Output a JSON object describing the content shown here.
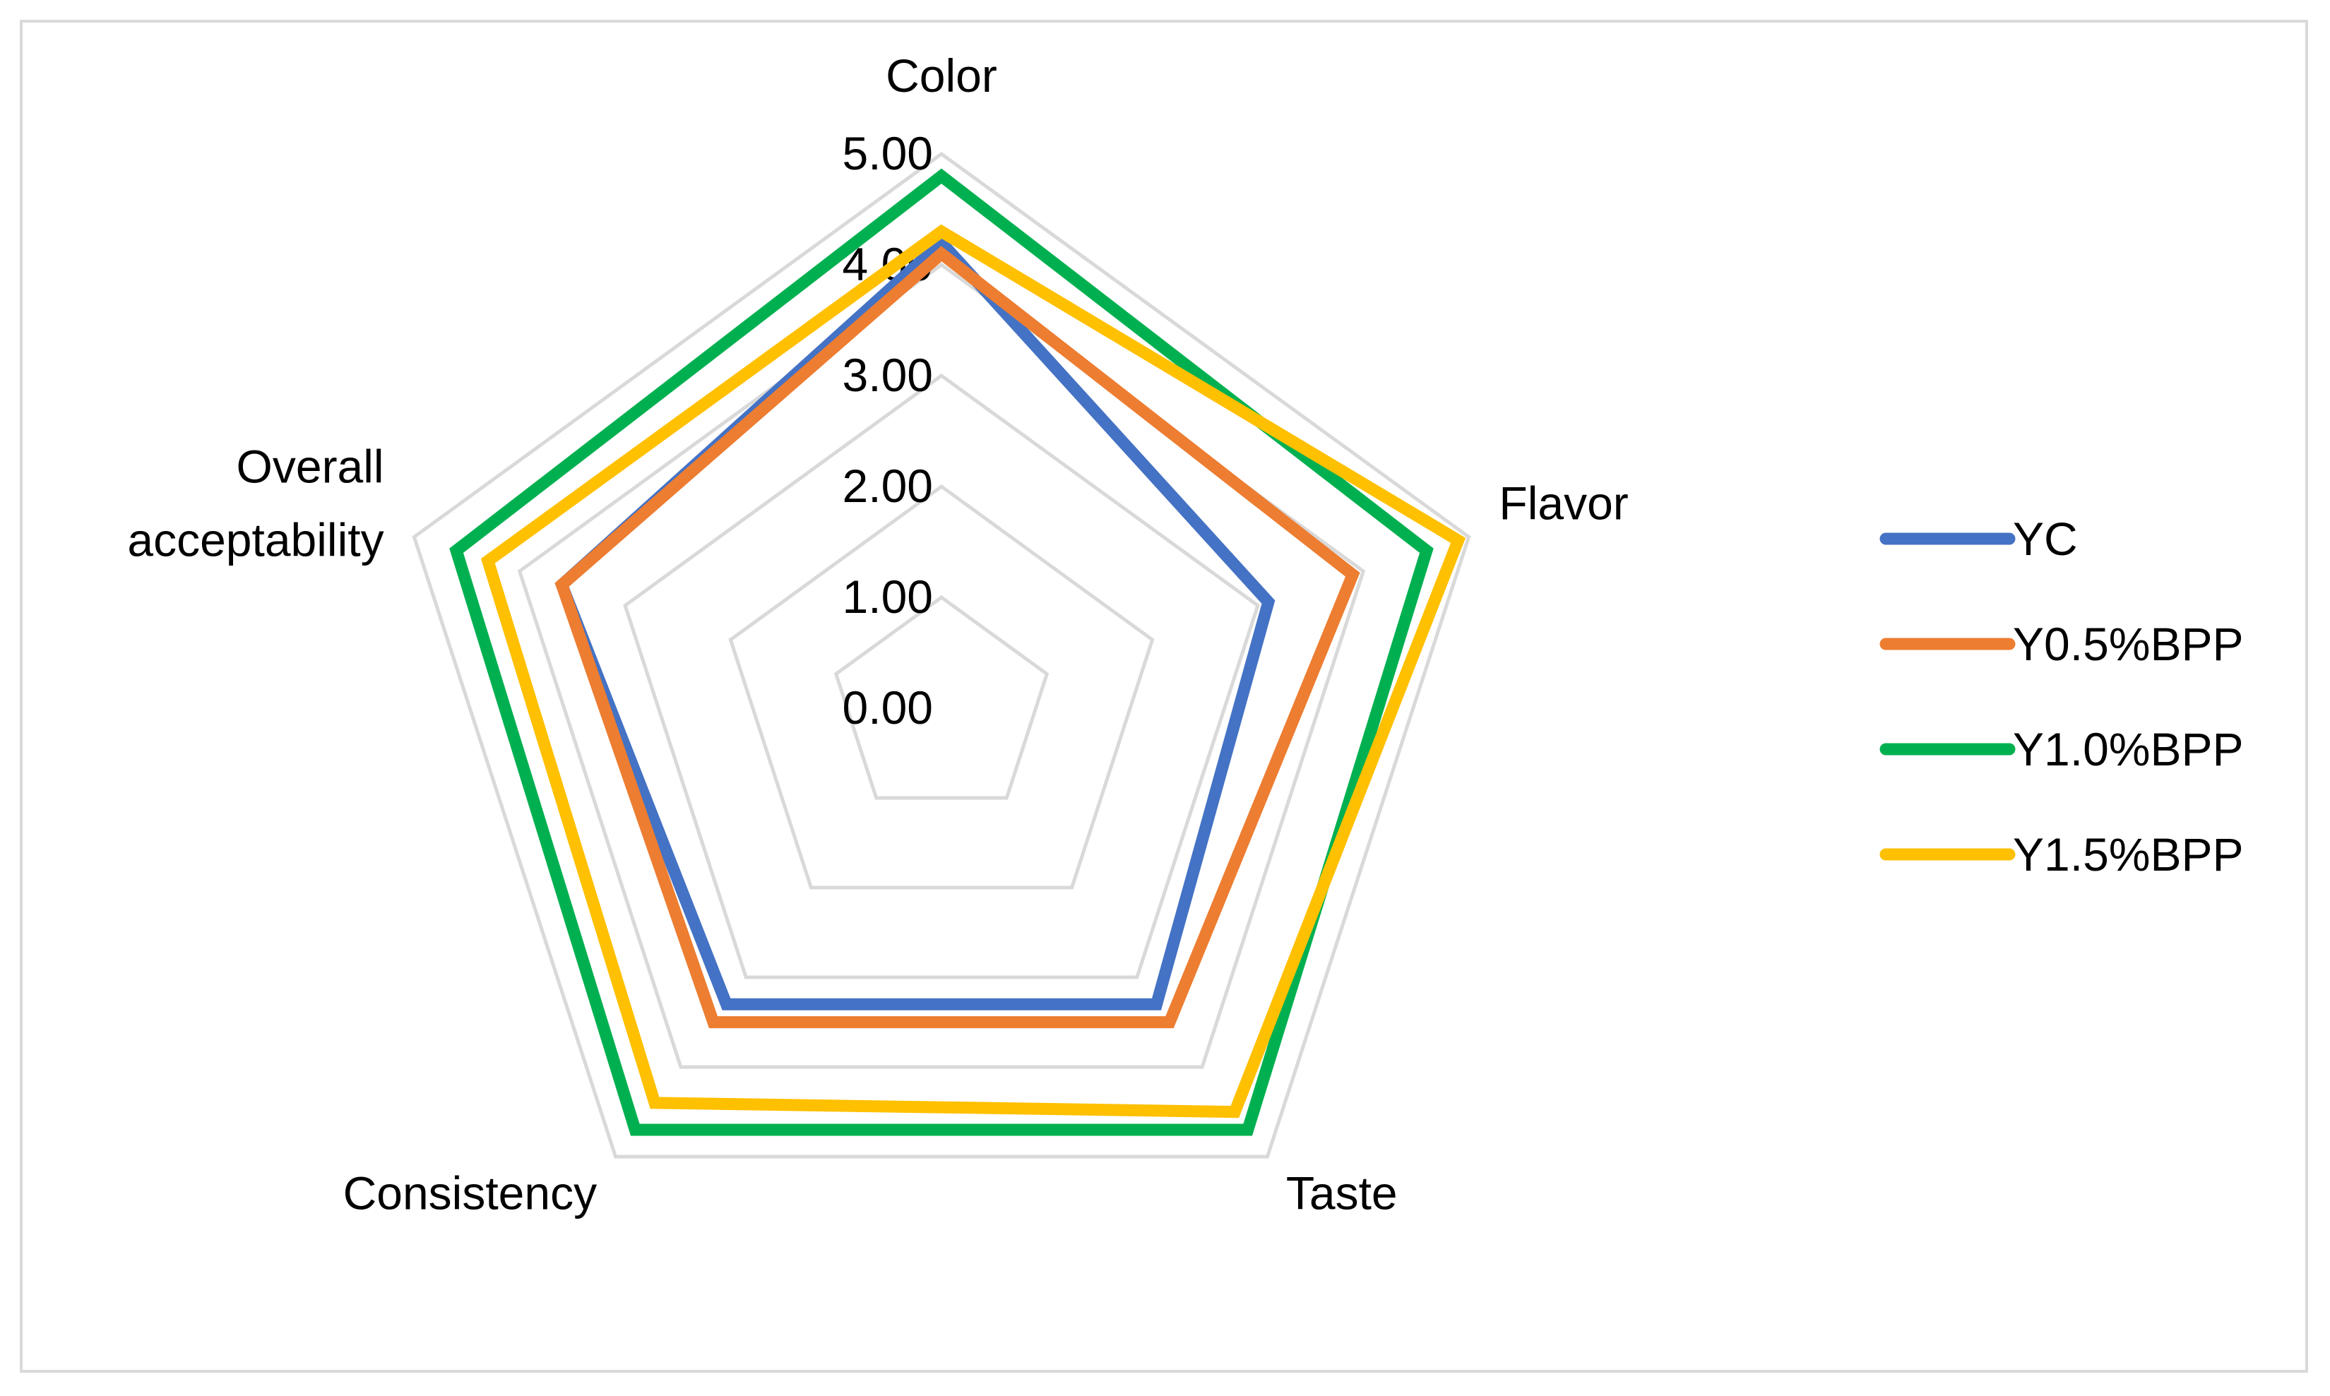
{
  "chart_data": {
    "type": "radar",
    "title": "",
    "axes": [
      "Color",
      "Flavor",
      "Taste",
      "Consistency",
      "Overall acceptability"
    ],
    "axis_label_lines": [
      [
        "Color"
      ],
      [
        "Flavor"
      ],
      [
        "Taste"
      ],
      [
        "Consistency"
      ],
      [
        "Overall",
        "acceptability"
      ]
    ],
    "ticks": [
      "0.00",
      "1.00",
      "2.00",
      "3.00",
      "4.00",
      "5.00"
    ],
    "range": [
      0,
      5
    ],
    "grid": true,
    "legend_position": "right",
    "series": [
      {
        "name": "YC",
        "color": "#4472C4",
        "values": [
          4.2,
          3.1,
          3.3,
          3.3,
          3.6
        ]
      },
      {
        "name": "Y0.5%BPP",
        "color": "#ED7D31",
        "values": [
          4.1,
          3.9,
          3.5,
          3.5,
          3.6
        ]
      },
      {
        "name": "Y1.0%BPP",
        "color": "#00B050",
        "values": [
          4.8,
          4.6,
          4.7,
          4.7,
          4.6
        ]
      },
      {
        "name": "Y1.5%BPP",
        "color": "#FFC000",
        "values": [
          4.3,
          4.9,
          4.5,
          4.4,
          4.3
        ]
      }
    ]
  }
}
